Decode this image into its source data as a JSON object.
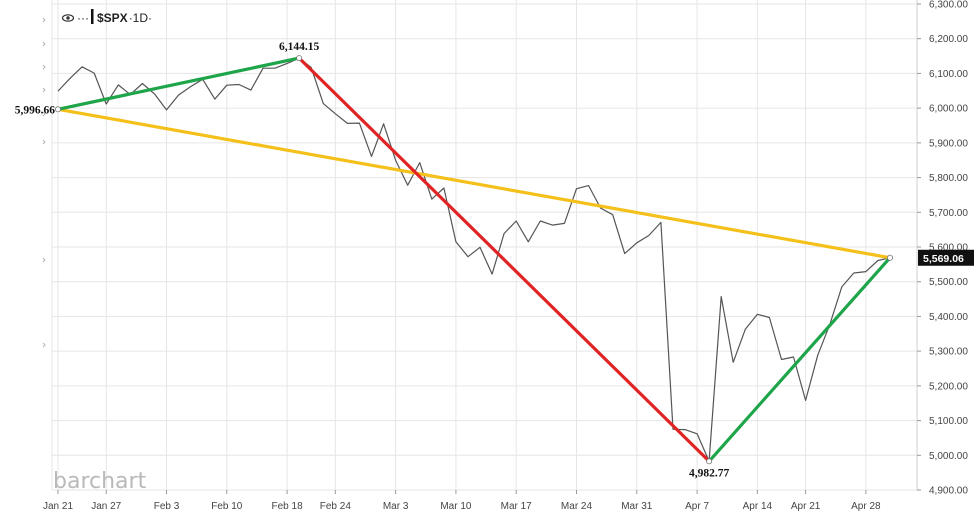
{
  "header": {
    "symbol": "$SPX",
    "interval": "·1D·",
    "more": "···",
    "icon": "eye-icon"
  },
  "watermark": "barchart",
  "colors": {
    "price_line": "#555555",
    "up_segment": "#1ea54a",
    "down_segment": "#e02424",
    "range_line": "#f5c01a",
    "grid": "#e6e6e6",
    "last_price_bg": "#111111"
  },
  "chart_data": {
    "type": "line",
    "x_ticks": [
      "Jan 21",
      "Jan 27",
      "Feb 3",
      "Feb 10",
      "Feb 18",
      "Feb 24",
      "Mar 3",
      "Mar 10",
      "Mar 17",
      "Mar 24",
      "Mar 31",
      "Apr 7",
      "Apr 14",
      "Apr 21",
      "Apr 28"
    ],
    "y_ticks": [
      "6,300.00",
      "6,200.00",
      "6,100.00",
      "6,000.00",
      "5,900.00",
      "5,800.00",
      "5,700.00",
      "5,600.00",
      "5,500.00",
      "5,400.00",
      "5,300.00",
      "5,200.00",
      "5,100.00",
      "5,000.00",
      "4,900.00"
    ],
    "ylim": [
      4900,
      6300
    ],
    "last_price_label": "5,569.06",
    "series": [
      {
        "x": [
          "Jan 21",
          "Jan 22",
          "Jan 23",
          "Jan 24",
          "Jan 27",
          "Jan 28",
          "Jan 29",
          "Jan 30",
          "Jan 31",
          "Feb 3",
          "Feb 4",
          "Feb 5",
          "Feb 6",
          "Feb 7",
          "Feb 10",
          "Feb 11",
          "Feb 12",
          "Feb 13",
          "Feb 14",
          "Feb 18",
          "Feb 19",
          "Feb 20",
          "Feb 21",
          "Feb 24",
          "Feb 25",
          "Feb 26",
          "Feb 27",
          "Feb 28",
          "Mar 3",
          "Mar 4",
          "Mar 5",
          "Mar 6",
          "Mar 7",
          "Mar 10",
          "Mar 11",
          "Mar 12",
          "Mar 13",
          "Mar 14",
          "Mar 17",
          "Mar 18",
          "Mar 19",
          "Mar 20",
          "Mar 21",
          "Mar 24",
          "Mar 25",
          "Mar 26",
          "Mar 27",
          "Mar 28",
          "Mar 31",
          "Apr 1",
          "Apr 2",
          "Apr 3",
          "Apr 4",
          "Apr 7",
          "Apr 8",
          "Apr 9",
          "Apr 10",
          "Apr 11",
          "Apr 14",
          "Apr 15",
          "Apr 16",
          "Apr 17",
          "Apr 21",
          "Apr 22",
          "Apr 23",
          "Apr 24",
          "Apr 25",
          "Apr 28",
          "Apr 29",
          "Apr 30"
        ],
        "values": [
          6049,
          6086,
          6119,
          6101,
          6012,
          6067,
          6039,
          6071,
          6041,
          5995,
          6038,
          6062,
          6083,
          6026,
          6066,
          6068,
          6052,
          6115,
          6115,
          6129,
          6144,
          6117,
          6013,
          5984,
          5956,
          5957,
          5861,
          5955,
          5850,
          5778,
          5843,
          5738,
          5770,
          5615,
          5572,
          5599,
          5522,
          5639,
          5675,
          5615,
          5675,
          5663,
          5668,
          5768,
          5777,
          5712,
          5693,
          5581,
          5612,
          5633,
          5671,
          5075,
          5074,
          5062,
          4983,
          5457,
          5268,
          5363,
          5406,
          5397,
          5276,
          5283,
          5158,
          5288,
          5376,
          5485,
          5525,
          5529,
          5561,
          5569
        ]
      }
    ],
    "annotations": [
      {
        "text": "5,996.66",
        "x": "Jan 21",
        "y": 5996.66
      },
      {
        "text": "6,144.15",
        "x": "Feb 19",
        "y": 6144.15
      },
      {
        "text": "4,982.77",
        "x": "Apr 8",
        "y": 4982.77
      }
    ],
    "trend_lines": [
      {
        "color": "green",
        "from": {
          "x": "Jan 21",
          "y": 5996.66
        },
        "to": {
          "x": "Feb 19",
          "y": 6144.15
        }
      },
      {
        "color": "red",
        "from": {
          "x": "Feb 19",
          "y": 6144.15
        },
        "to": {
          "x": "Apr 8",
          "y": 4982.77
        }
      },
      {
        "color": "green",
        "from": {
          "x": "Apr 8",
          "y": 4982.77
        },
        "to": {
          "x": "Apr 30",
          "y": 5569.06
        }
      },
      {
        "color": "yellow",
        "from": {
          "x": "Jan 21",
          "y": 5996.66
        },
        "to": {
          "x": "Apr 30",
          "y": 5569.06
        }
      }
    ]
  }
}
